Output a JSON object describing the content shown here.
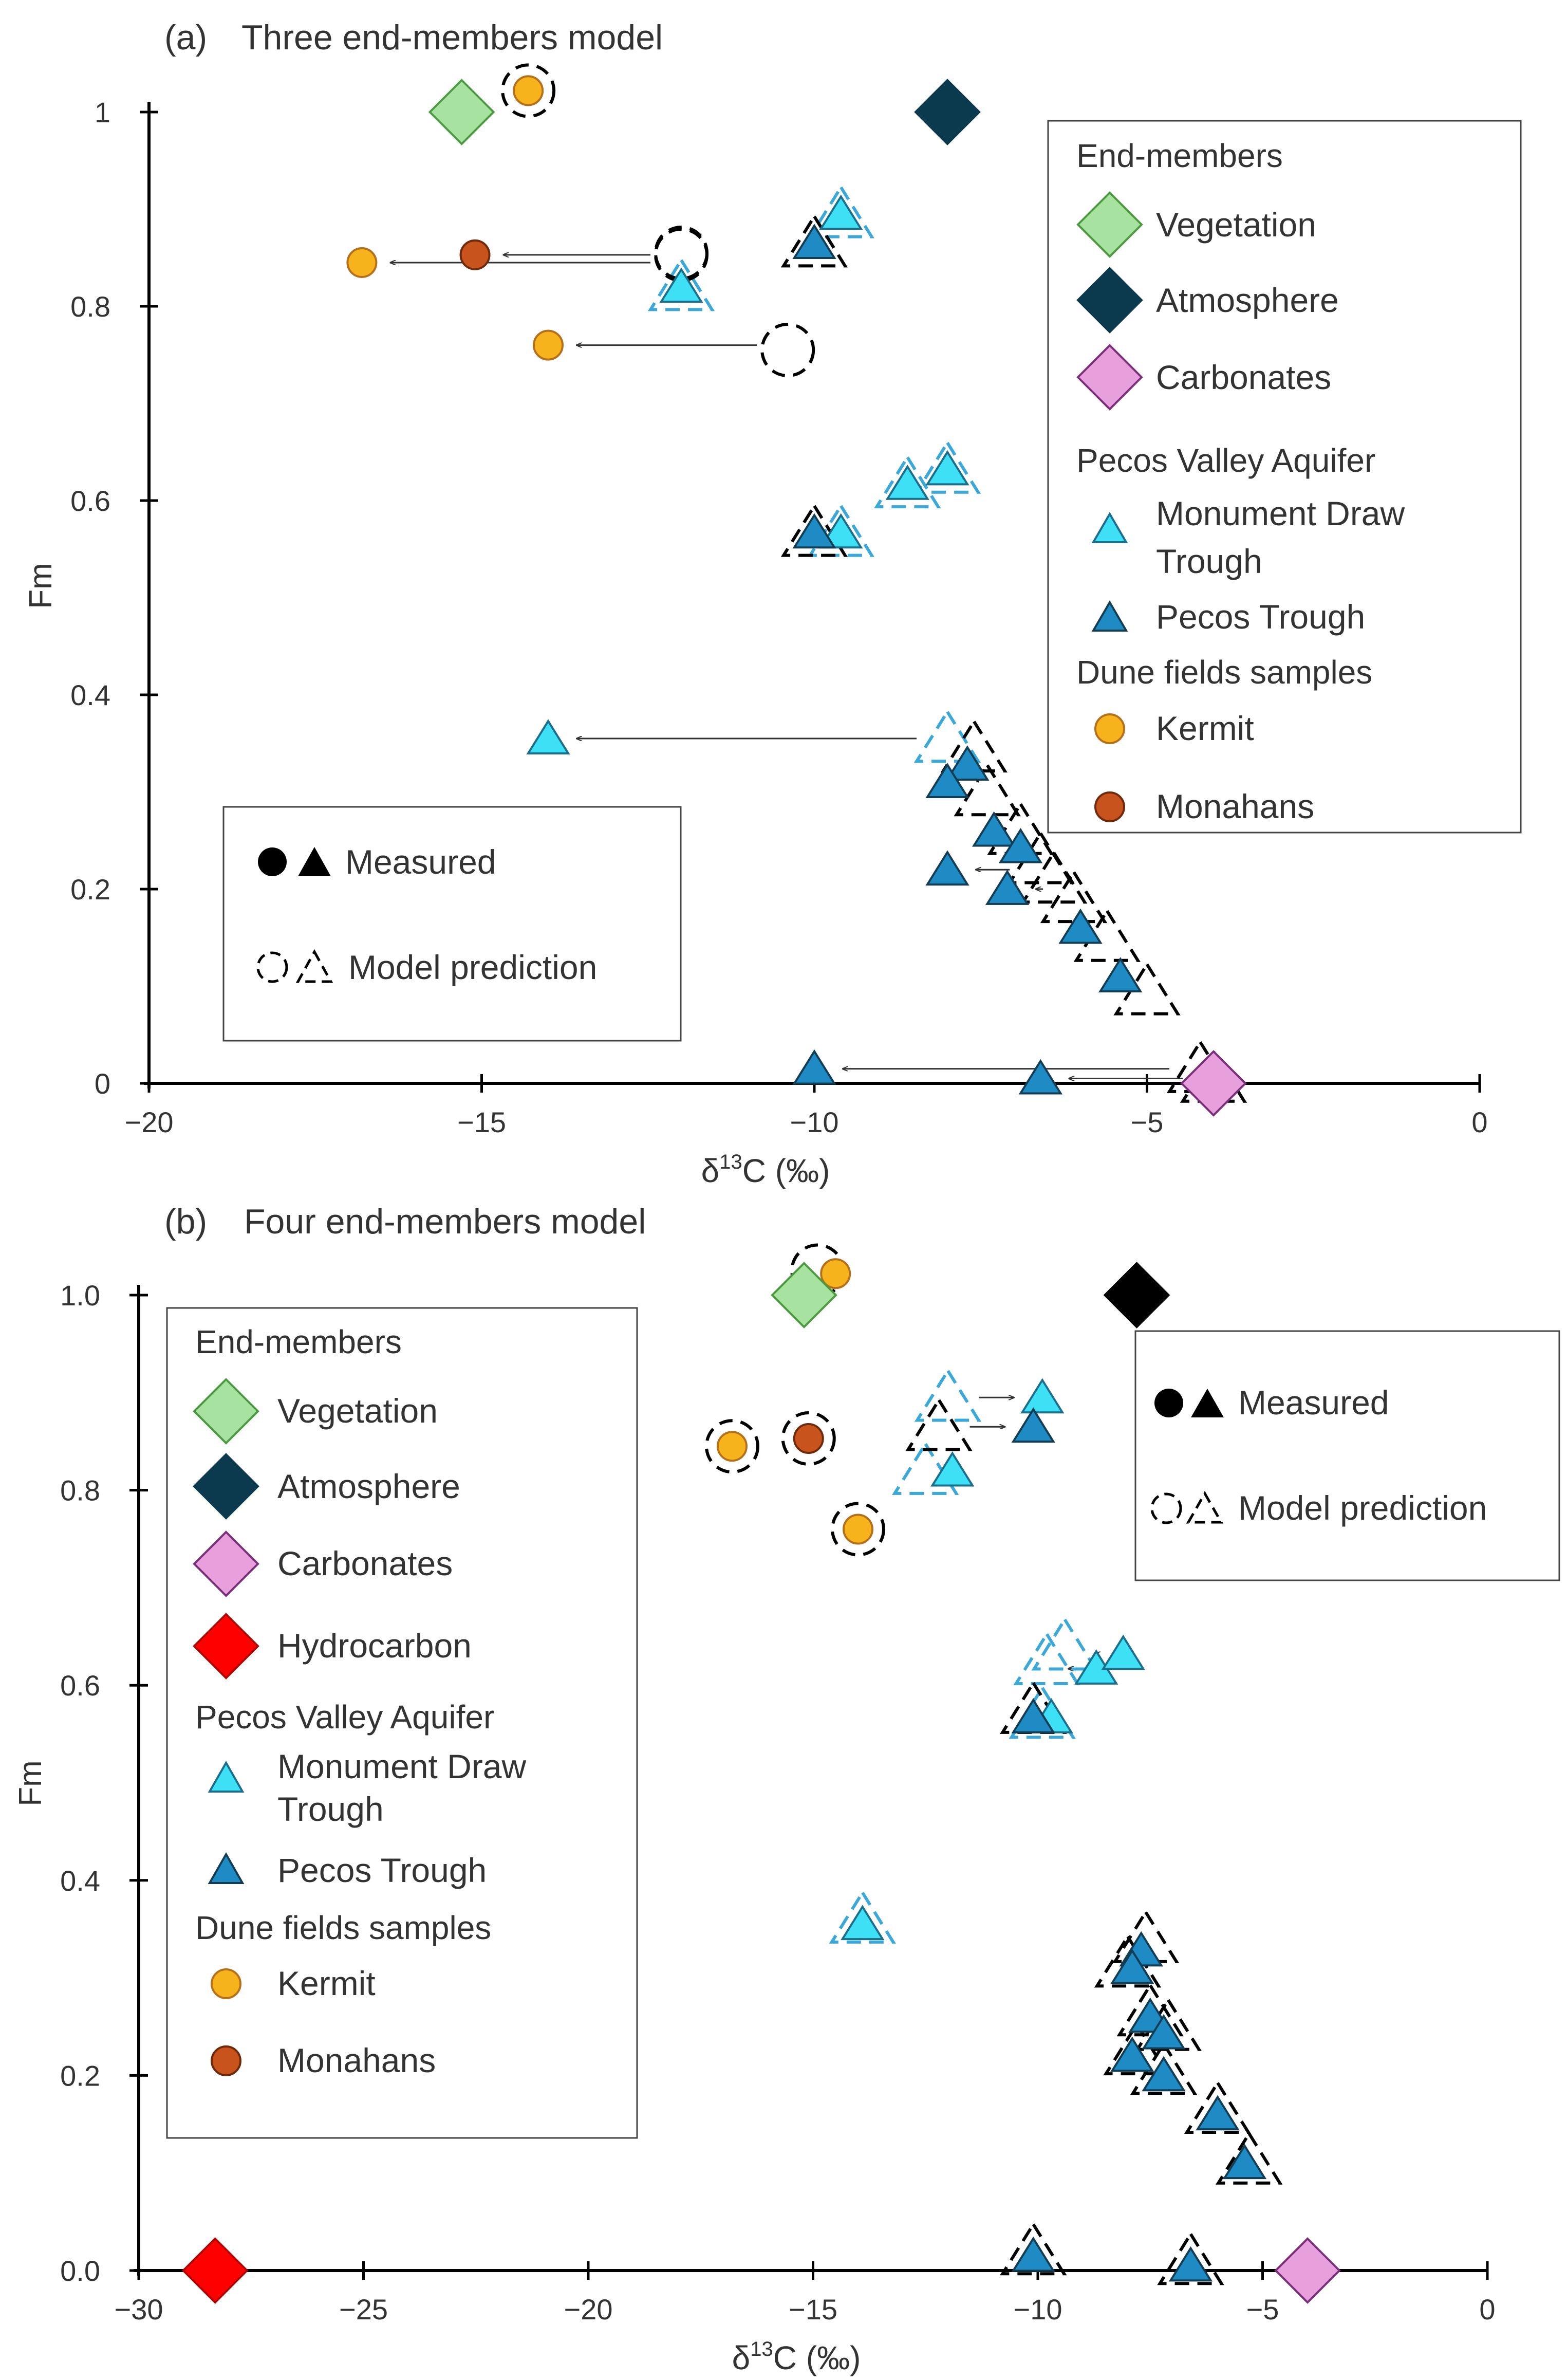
{
  "chart_data": [
    {
      "type": "scatter",
      "panel_label": "(a)",
      "title": "Three end-members model",
      "xlabel": "δ13C (‰)",
      "ylabel": "Fm",
      "xlim": [
        -20,
        0
      ],
      "ylim": [
        0,
        1
      ],
      "xticks": [
        -20,
        -15,
        -10,
        -5,
        0
      ],
      "xtick_labels": [
        "−20",
        "−15",
        "−10",
        "−5",
        "0"
      ],
      "yticks": [
        0,
        0.2,
        0.4,
        0.6,
        0.8,
        1
      ],
      "ytick_labels": [
        "0",
        "0.2",
        "0.4",
        "0.6",
        "0.8",
        "1"
      ],
      "legend": {
        "title": "End-members",
        "end_members": [
          "Vegetation",
          "Atmosphere",
          "Carbonates"
        ],
        "aquifer_title": "Pecos Valley Aquifer",
        "aquifer_items": [
          "Monument Draw Trough",
          "Pecos Trough"
        ],
        "dune_title": "Dune fields samples",
        "dune_items": [
          "Kermit",
          "Monahans"
        ]
      },
      "legend2": {
        "measured": "Measured",
        "predicted": "Model prediction"
      },
      "end_members": [
        {
          "name": "Vegetation",
          "x": -15.3,
          "y": 1.0,
          "color": "#a8e2a0",
          "stroke": "#4a9a3f"
        },
        {
          "name": "Atmosphere",
          "x": -8.0,
          "y": 1.0,
          "color": "#0b3a4e",
          "stroke": "#0b3a4e"
        },
        {
          "name": "Carbonates",
          "x": -4.0,
          "y": 0.0,
          "color": "#e7a0dc",
          "stroke": "#7a2f7a"
        }
      ],
      "series": [
        {
          "name": "Monument Draw Trough",
          "marker": "triangle",
          "color": "#3ee0f5",
          "measured": [
            [
              -9.6,
              0.895
            ],
            [
              -12.0,
              0.82
            ],
            [
              -14.0,
              0.355
            ],
            [
              -8.6,
              0.617
            ],
            [
              -8.0,
              0.632
            ],
            [
              -9.6,
              0.567
            ]
          ],
          "predicted": [
            [
              -9.6,
              0.895
            ],
            [
              -12.0,
              0.82
            ],
            [
              -8.0,
              0.355
            ],
            [
              -8.6,
              0.617
            ],
            [
              -8.0,
              0.632
            ],
            [
              -9.6,
              0.567
            ]
          ]
        },
        {
          "name": "Pecos Trough",
          "marker": "triangle",
          "color": "#1f8bc4",
          "measured": [
            [
              -10.0,
              0.865
            ],
            [
              -10.0,
              0.567
            ],
            [
              -7.7,
              0.328
            ],
            [
              -8.0,
              0.31
            ],
            [
              -7.3,
              0.26
            ],
            [
              -8.0,
              0.22
            ],
            [
              -6.9,
              0.243
            ],
            [
              -7.1,
              0.2
            ],
            [
              -6.0,
              0.16
            ],
            [
              -5.4,
              0.11
            ],
            [
              -10.0,
              0.015
            ],
            [
              -6.6,
              0.005
            ]
          ],
          "predicted": [
            [
              -10.0,
              0.865
            ],
            [
              -10.0,
              0.567
            ],
            [
              -7.6,
              0.345
            ],
            [
              -7.4,
              0.3
            ],
            [
              -6.9,
              0.26
            ],
            [
              -6.6,
              0.23
            ],
            [
              -6.4,
              0.21
            ],
            [
              -6.1,
              0.19
            ],
            [
              -5.6,
              0.15
            ],
            [
              -5.0,
              0.095
            ],
            [
              -4.2,
              0.015
            ],
            [
              -4.0,
              0.005
            ]
          ]
        },
        {
          "name": "Kermit",
          "marker": "circle",
          "color": "#f7b31b",
          "measured": [
            [
              -14.3,
              1.022
            ],
            [
              -16.8,
              0.845
            ],
            [
              -14.0,
              0.76
            ]
          ],
          "predicted": [
            [
              -14.3,
              1.022
            ],
            [
              -12.0,
              0.855
            ],
            [
              -10.4,
              0.755
            ]
          ]
        },
        {
          "name": "Monahans",
          "marker": "circle",
          "color": "#c8531c",
          "measured": [
            [
              -15.1,
              0.853
            ]
          ],
          "predicted": [
            [
              -12.0,
              0.853
            ]
          ]
        }
      ]
    },
    {
      "type": "scatter",
      "panel_label": "(b)",
      "title": "Four end-members model",
      "xlabel": "δ13C (‰)",
      "ylabel": "Fm",
      "xlim": [
        -30,
        0
      ],
      "ylim": [
        0,
        1.0
      ],
      "xticks": [
        -30,
        -25,
        -20,
        -15,
        -10,
        -5,
        0
      ],
      "xtick_labels": [
        "−30",
        "−25",
        "−20",
        "−15",
        "−10",
        "−5",
        "0"
      ],
      "yticks": [
        0,
        0.2,
        0.4,
        0.6,
        0.8,
        1.0
      ],
      "ytick_labels": [
        "0.0",
        "0.2",
        "0.4",
        "0.6",
        "0.8",
        "1.0"
      ],
      "legend": {
        "title": "End-members",
        "end_members": [
          "Vegetation",
          "Atmosphere",
          "Carbonates",
          "Hydrocarbon"
        ],
        "aquifer_title": "Pecos Valley Aquifer",
        "aquifer_items": [
          "Monument Draw Trough",
          "Pecos Trough"
        ],
        "dune_title": "Dune fields samples",
        "dune_items": [
          "Kermit",
          "Monahans"
        ]
      },
      "legend2": {
        "measured": "Measured",
        "predicted": "Model prediction"
      },
      "end_members": [
        {
          "name": "Vegetation",
          "x": -15.2,
          "y": 1.0,
          "color": "#a8e2a0",
          "stroke": "#4a9a3f"
        },
        {
          "name": "Atmosphere",
          "x": -7.8,
          "y": 1.0,
          "color": "#000000",
          "stroke": "#000000"
        },
        {
          "name": "Carbonates",
          "x": -4.0,
          "y": 0.0,
          "color": "#e7a0dc",
          "stroke": "#7a2f7a"
        },
        {
          "name": "Hydrocarbon",
          "x": -28.3,
          "y": 0.0,
          "color": "#ff0000",
          "stroke": "#b00000"
        }
      ],
      "series": [
        {
          "name": "Monument Draw Trough",
          "marker": "triangle",
          "color": "#3ee0f5",
          "measured": [
            [
              -9.9,
              0.895
            ],
            [
              -11.9,
              0.82
            ],
            [
              -13.9,
              0.355
            ],
            [
              -8.7,
              0.617
            ],
            [
              -8.1,
              0.632
            ],
            [
              -9.7,
              0.567
            ]
          ],
          "predicted": [
            [
              -12.0,
              0.895
            ],
            [
              -12.5,
              0.82
            ],
            [
              -13.9,
              0.36
            ],
            [
              -9.8,
              0.625
            ],
            [
              -9.4,
              0.64
            ],
            [
              -9.9,
              0.57
            ]
          ]
        },
        {
          "name": "Pecos Trough",
          "marker": "triangle",
          "color": "#1f8bc4",
          "measured": [
            [
              -10.1,
              0.865
            ],
            [
              -10.1,
              0.567
            ],
            [
              -7.7,
              0.328
            ],
            [
              -7.9,
              0.31
            ],
            [
              -7.5,
              0.26
            ],
            [
              -7.9,
              0.22
            ],
            [
              -7.2,
              0.243
            ],
            [
              -7.2,
              0.2
            ],
            [
              -6.0,
              0.16
            ],
            [
              -5.4,
              0.11
            ],
            [
              -10.1,
              0.015
            ],
            [
              -6.6,
              0.005
            ]
          ],
          "predicted": [
            [
              -12.2,
              0.865
            ],
            [
              -10.1,
              0.575
            ],
            [
              -7.6,
              0.34
            ],
            [
              -8.0,
              0.315
            ],
            [
              -7.5,
              0.265
            ],
            [
              -7.8,
              0.225
            ],
            [
              -7.1,
              0.25
            ],
            [
              -7.2,
              0.205
            ],
            [
              -6.0,
              0.165
            ],
            [
              -5.3,
              0.113
            ],
            [
              -10.1,
              0.02
            ],
            [
              -6.6,
              0.01
            ]
          ]
        },
        {
          "name": "Kermit",
          "marker": "circle",
          "color": "#f7b31b",
          "measured": [
            [
              -14.5,
              1.022
            ],
            [
              -16.8,
              0.845
            ],
            [
              -14.0,
              0.76
            ]
          ],
          "predicted": [
            [
              -14.9,
              1.025
            ],
            [
              -16.8,
              0.845
            ],
            [
              -14.0,
              0.76
            ]
          ]
        },
        {
          "name": "Monahans",
          "marker": "circle",
          "color": "#c8531c",
          "measured": [
            [
              -15.1,
              0.853
            ]
          ],
          "predicted": [
            [
              -15.1,
              0.853
            ]
          ]
        }
      ]
    }
  ]
}
